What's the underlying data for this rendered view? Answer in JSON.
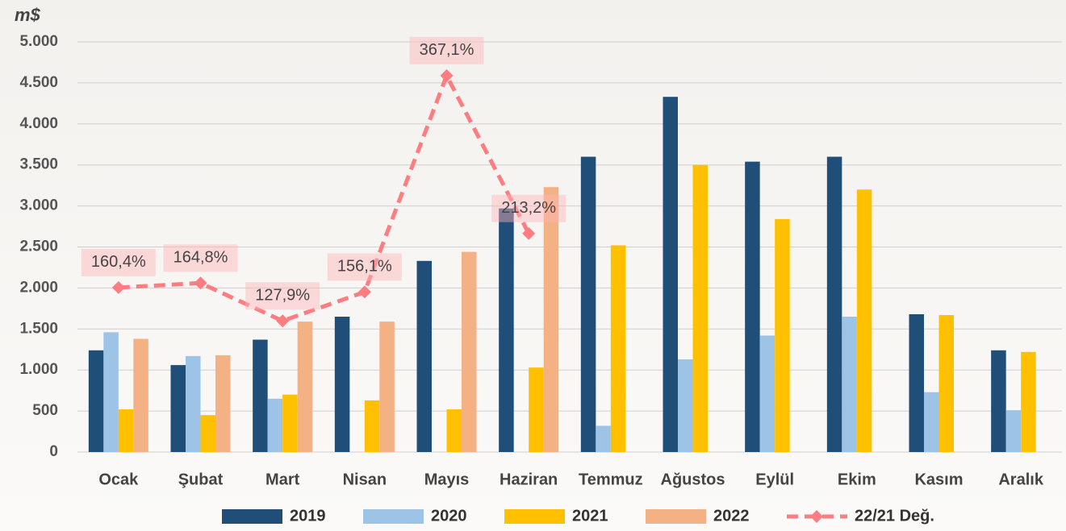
{
  "chart_data": {
    "type": "bar",
    "y_label": "m$",
    "categories": [
      "Ocak",
      "Şubat",
      "Mart",
      "Nisan",
      "Mayıs",
      "Haziran",
      "Temmuz",
      "Ağustos",
      "Eylül",
      "Ekim",
      "Kasım",
      "Aralık"
    ],
    "series": [
      {
        "name": "2019",
        "color": "#1f4e79",
        "values": [
          1240,
          1060,
          1370,
          1650,
          2330,
          2970,
          3600,
          4330,
          3540,
          3600,
          1680,
          1240
        ]
      },
      {
        "name": "2020",
        "color": "#9dc3e6",
        "values": [
          1460,
          1170,
          650,
          null,
          null,
          null,
          320,
          1130,
          1420,
          1650,
          730,
          510
        ]
      },
      {
        "name": "2021",
        "color": "#ffc000",
        "values": [
          520,
          450,
          700,
          630,
          520,
          1030,
          2520,
          3500,
          2840,
          3200,
          1670,
          1220
        ]
      },
      {
        "name": "2022",
        "color": "#f4b183",
        "values": [
          1380,
          1180,
          1590,
          1590,
          2440,
          3230,
          null,
          null,
          null,
          null,
          null,
          null
        ]
      },
      {
        "name": "22/21 Değ.",
        "type": "line",
        "axis": "y2",
        "color": "#ff7c80",
        "values": [
          160.4,
          164.8,
          127.9,
          156.1,
          367.1,
          213.2,
          null,
          null,
          null,
          null,
          null,
          null
        ],
        "value_labels": [
          "160,4%",
          "164,8%",
          "127,9%",
          "156,1%",
          "367,1%",
          "213,2%",
          null,
          null,
          null,
          null,
          null,
          null
        ]
      }
    ],
    "ylim": [
      0,
      5000
    ],
    "yticks": [
      0,
      500,
      {
        "value": 1000,
        "label": "1.000"
      },
      {
        "value": 1500,
        "label": "1.500"
      },
      {
        "value": 2000,
        "label": "2.000"
      },
      {
        "value": 2500,
        "label": "2.500"
      },
      {
        "value": 3000,
        "label": "3.000"
      },
      {
        "value": 3500,
        "label": "3.500"
      },
      {
        "value": 4000,
        "label": "4.000"
      },
      {
        "value": 4500,
        "label": "4.500"
      },
      {
        "value": 5000,
        "label": "5.000"
      }
    ],
    "y2lim": [
      0,
      400
    ],
    "grid": true,
    "legend": "bottom"
  }
}
